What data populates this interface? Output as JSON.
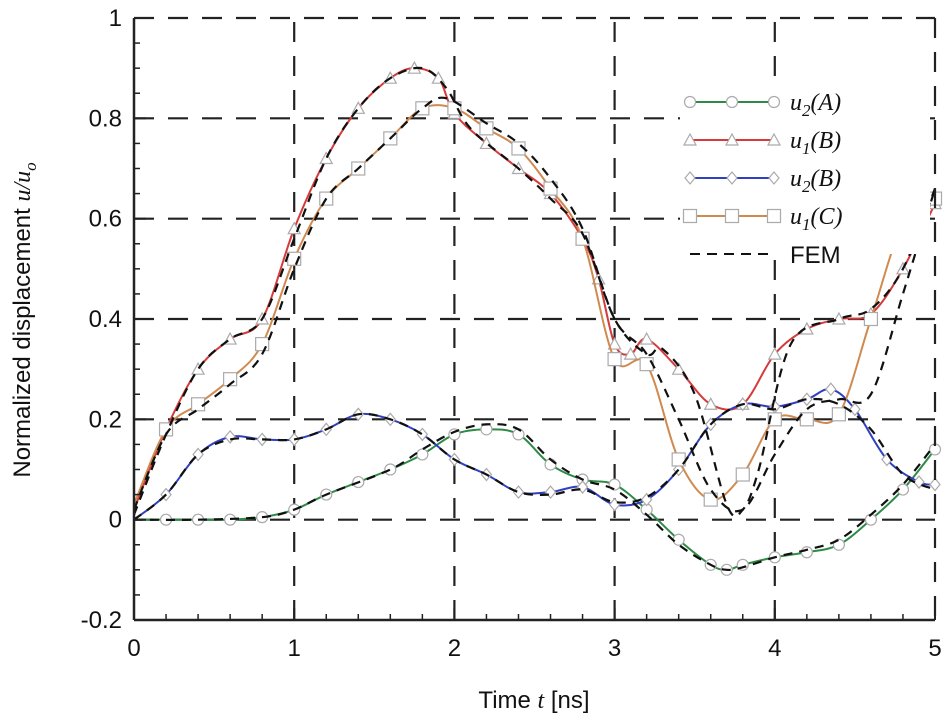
{
  "chart_data": {
    "type": "line",
    "xlabel": {
      "pre": "Time ",
      "var": "t",
      "post": " [ns]"
    },
    "ylabel": {
      "pre": "Normalized displacement ",
      "var": "u/u",
      "sub": "o"
    },
    "xlim": [
      0,
      5
    ],
    "ylim": [
      -0.2,
      1
    ],
    "xticks": [
      "0",
      "1",
      "2",
      "3",
      "4",
      "5"
    ],
    "yticks": [
      "-0.2",
      "0",
      "0.2",
      "0.4",
      "0.6",
      "0.8",
      "1"
    ],
    "grid": true,
    "legend_position": "top-right",
    "series": [
      {
        "name": "u2(A)",
        "base": "u",
        "sub": "2",
        "arg": "(A)",
        "color": "#2e8b47",
        "marker": "circle",
        "x": [
          0,
          0.2,
          0.4,
          0.6,
          0.8,
          1.0,
          1.2,
          1.4,
          1.6,
          1.8,
          2.0,
          2.2,
          2.4,
          2.6,
          2.8,
          3.0,
          3.2,
          3.4,
          3.6,
          3.7,
          3.8,
          4.0,
          4.2,
          4.4,
          4.6,
          4.8,
          5.0
        ],
        "y": [
          0,
          0,
          0,
          0,
          0.005,
          0.02,
          0.05,
          0.075,
          0.1,
          0.13,
          0.17,
          0.18,
          0.17,
          0.11,
          0.08,
          0.07,
          0.02,
          -0.04,
          -0.09,
          -0.1,
          -0.09,
          -0.075,
          -0.065,
          -0.05,
          0,
          0.06,
          0.14
        ]
      },
      {
        "name": "u1(B)",
        "base": "u",
        "sub": "1",
        "arg": "(B)",
        "color": "#d63a3a",
        "marker": "triangle",
        "x": [
          0,
          0.2,
          0.4,
          0.6,
          0.8,
          1.0,
          1.2,
          1.4,
          1.6,
          1.75,
          1.9,
          2.0,
          2.2,
          2.4,
          2.6,
          2.8,
          2.9,
          3.0,
          3.1,
          3.2,
          3.4,
          3.6,
          3.8,
          4.0,
          4.2,
          4.4,
          4.6,
          4.8,
          5.0
        ],
        "y": [
          0.02,
          0.18,
          0.3,
          0.36,
          0.4,
          0.58,
          0.72,
          0.82,
          0.88,
          0.9,
          0.88,
          0.81,
          0.75,
          0.7,
          0.65,
          0.56,
          0.48,
          0.35,
          0.33,
          0.36,
          0.3,
          0.23,
          0.23,
          0.33,
          0.38,
          0.4,
          0.41,
          0.5,
          0.63
        ]
      },
      {
        "name": "u2(B)",
        "base": "u",
        "sub": "2",
        "arg": "(B)",
        "color": "#3040c0",
        "marker": "diamond",
        "x": [
          0,
          0.2,
          0.4,
          0.6,
          0.8,
          1.0,
          1.2,
          1.4,
          1.6,
          1.8,
          2.0,
          2.2,
          2.4,
          2.6,
          2.8,
          3.0,
          3.2,
          3.4,
          3.6,
          3.8,
          4.0,
          4.2,
          4.35,
          4.5,
          4.7,
          4.9,
          5.0
        ],
        "y": [
          0,
          0.05,
          0.13,
          0.165,
          0.16,
          0.16,
          0.18,
          0.21,
          0.2,
          0.17,
          0.12,
          0.09,
          0.055,
          0.055,
          0.065,
          0.03,
          0.04,
          0.1,
          0.19,
          0.23,
          0.225,
          0.24,
          0.26,
          0.22,
          0.12,
          0.075,
          0.07
        ]
      },
      {
        "name": "u1(C)",
        "base": "u",
        "sub": "1",
        "arg": "(C)",
        "color": "#d08a50",
        "marker": "square",
        "x": [
          0,
          0.2,
          0.4,
          0.6,
          0.8,
          1.0,
          1.2,
          1.4,
          1.6,
          1.8,
          2.0,
          2.2,
          2.4,
          2.6,
          2.8,
          3.0,
          3.2,
          3.4,
          3.6,
          3.8,
          4.0,
          4.2,
          4.4,
          4.6,
          4.8,
          5.0
        ],
        "y": [
          0.03,
          0.18,
          0.23,
          0.28,
          0.35,
          0.52,
          0.64,
          0.7,
          0.76,
          0.82,
          0.82,
          0.78,
          0.74,
          0.66,
          0.56,
          0.32,
          0.31,
          0.12,
          0.04,
          0.09,
          0.2,
          0.2,
          0.21,
          0.4,
          0.59,
          0.64
        ]
      }
    ],
    "fem": {
      "name": "FEM",
      "color": "#111111",
      "series": [
        {
          "x": [
            0,
            0.4,
            0.8,
            1.0,
            1.2,
            1.6,
            1.8,
            2.0,
            2.2,
            2.4,
            2.6,
            2.8,
            3.0,
            3.2,
            3.4,
            3.6,
            3.7,
            3.8,
            4.0,
            4.2,
            4.4,
            4.6,
            4.8,
            5.0
          ],
          "y": [
            0,
            0,
            0.005,
            0.02,
            0.05,
            0.1,
            0.14,
            0.175,
            0.19,
            0.18,
            0.12,
            0.08,
            0.06,
            0.01,
            -0.05,
            -0.09,
            -0.1,
            -0.095,
            -0.075,
            -0.06,
            -0.04,
            0.01,
            0.07,
            0.15
          ]
        },
        {
          "x": [
            0,
            0.2,
            0.4,
            0.6,
            0.8,
            1.0,
            1.2,
            1.4,
            1.6,
            1.8,
            1.95,
            2.1,
            2.4,
            2.6,
            2.8,
            3.0,
            3.2,
            3.3,
            3.5,
            3.7,
            3.8,
            3.9,
            4.1,
            4.4,
            4.6,
            4.8,
            5.0
          ],
          "y": [
            0.01,
            0.17,
            0.3,
            0.36,
            0.4,
            0.56,
            0.72,
            0.82,
            0.88,
            0.9,
            0.86,
            0.78,
            0.7,
            0.64,
            0.57,
            0.4,
            0.33,
            0.34,
            0.25,
            0.03,
            0.02,
            0.1,
            0.35,
            0.4,
            0.42,
            0.5,
            0.66
          ]
        },
        {
          "x": [
            0,
            0.2,
            0.4,
            0.6,
            0.8,
            1.0,
            1.2,
            1.4,
            1.6,
            1.8,
            2.0,
            2.2,
            2.4,
            2.6,
            2.8,
            3.0,
            3.2,
            3.4,
            3.6,
            3.8,
            4.0,
            4.2,
            4.4,
            4.6,
            4.8,
            5.0
          ],
          "y": [
            0,
            0.05,
            0.13,
            0.16,
            0.16,
            0.16,
            0.18,
            0.21,
            0.2,
            0.17,
            0.12,
            0.09,
            0.055,
            0.05,
            0.06,
            0.035,
            0.045,
            0.1,
            0.19,
            0.23,
            0.22,
            0.24,
            0.23,
            0.18,
            0.09,
            0.06
          ]
        },
        {
          "x": [
            0,
            0.2,
            0.4,
            0.6,
            0.8,
            1.0,
            1.2,
            1.4,
            1.6,
            1.8,
            1.95,
            2.2,
            2.4,
            2.6,
            2.8,
            3.0,
            3.2,
            3.4,
            3.6,
            3.8,
            4.0,
            4.2,
            4.4,
            4.6,
            4.8,
            5.0
          ],
          "y": [
            0.02,
            0.17,
            0.22,
            0.27,
            0.33,
            0.5,
            0.64,
            0.7,
            0.76,
            0.82,
            0.84,
            0.79,
            0.75,
            0.68,
            0.58,
            0.4,
            0.33,
            0.2,
            0.06,
            0.02,
            0.13,
            0.22,
            0.24,
            0.25,
            0.45,
            0.66
          ]
        }
      ]
    }
  }
}
